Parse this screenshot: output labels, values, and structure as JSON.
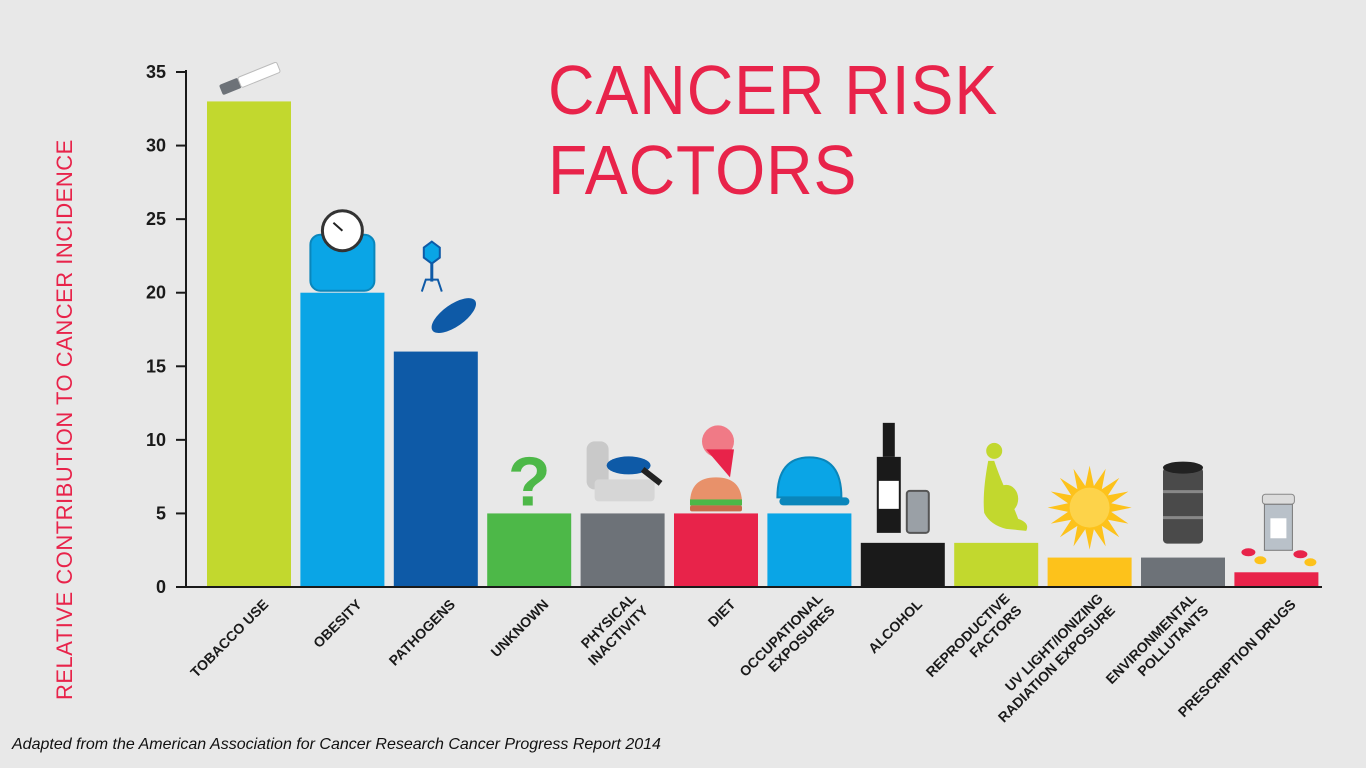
{
  "chart_data": {
    "type": "bar",
    "title": "CANCER RISK FACTORS",
    "ylabel": "RELATIVE CONTRIBUTION TO CANCER INCIDENCE",
    "xlabel": "",
    "ylim": [
      0,
      35
    ],
    "yticks": [
      "0",
      "5",
      "10",
      "15",
      "20",
      "25",
      "30",
      "35"
    ],
    "categories": [
      "TOBACCO USE",
      "OBESITY",
      "PATHOGENS",
      "UNKNOWN",
      "PHYSICAL INACTIVITY",
      "DIET",
      "OCCUPATIONAL EXPOSURES",
      "ALCOHOL",
      "REPRODUCTIVE FACTORS",
      "UV LIGHT/IONIZING RADIATION EXPOSURE",
      "ENVIRONMENTAL POLLUTANTS",
      "PRESCRIPTION DRUGS"
    ],
    "label_lines": [
      [
        "TOBACCO USE"
      ],
      [
        "OBESITY"
      ],
      [
        "PATHOGENS"
      ],
      [
        "UNKNOWN"
      ],
      [
        "PHYSICAL",
        "INACTIVITY"
      ],
      [
        "DIET"
      ],
      [
        "OCCUPATIONAL",
        "EXPOSURES"
      ],
      [
        "ALCOHOL"
      ],
      [
        "REPRODUCTIVE",
        "FACTORS"
      ],
      [
        "UV LIGHT/IONIZING",
        "RADIATION EXPOSURE"
      ],
      [
        "ENVIRONMENTAL",
        "POLLUTANTS"
      ],
      [
        "PRESCRIPTION DRUGS"
      ]
    ],
    "values": [
      33,
      20,
      16,
      5,
      5,
      5,
      5,
      3,
      3,
      2,
      2,
      1
    ],
    "colors": [
      "#c2d82e",
      "#0aa5e6",
      "#0e5aa7",
      "#4db848",
      "#6d7278",
      "#e8234a",
      "#0aa5e6",
      "#1a1a1a",
      "#c2d82e",
      "#fdc21b",
      "#6d7278",
      "#e8234a"
    ],
    "icons": [
      "cigarette-icon",
      "scale-icon",
      "virus-bacteria-icon",
      "question-mark-icon",
      "recliner-icon",
      "burger-icecream-icon",
      "hard-hat-icon",
      "bottle-can-icon",
      "pregnant-woman-icon",
      "sun-burst-icon",
      "oil-barrel-icon",
      "pill-bottle-icon"
    ]
  },
  "footer": {
    "source": "Adapted from the American Association for Cancer Research Cancer Progress Report 2014"
  }
}
